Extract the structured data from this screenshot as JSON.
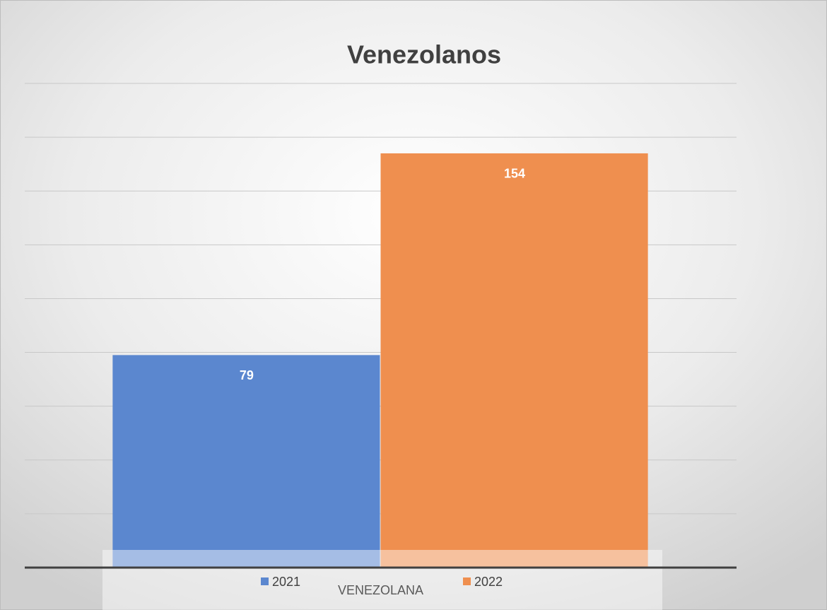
{
  "chart_data": {
    "type": "bar",
    "title": "Venezolanos",
    "categories": [
      "VENEZOLANA"
    ],
    "series": [
      {
        "name": "2021",
        "color": "#5b87cf",
        "values": [
          79
        ]
      },
      {
        "name": "2022",
        "color": "#ef8f4f",
        "values": [
          154
        ]
      }
    ],
    "ylim": [
      0,
      180
    ],
    "yticks": [
      0,
      20,
      40,
      60,
      80,
      100,
      120,
      140,
      160,
      180
    ],
    "grid": true,
    "legend": "bottom"
  }
}
